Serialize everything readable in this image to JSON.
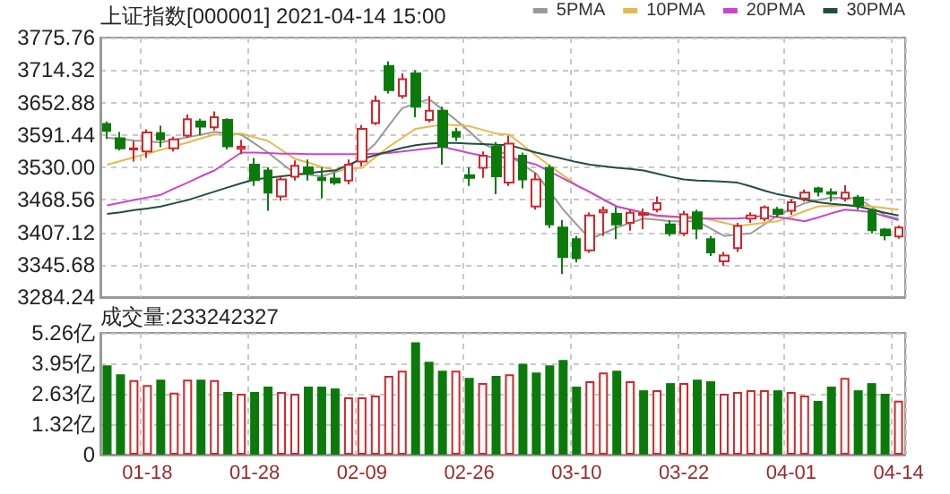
{
  "chart_data": [
    {
      "type": "candlestick",
      "title": "上证指数[000001] 2021-04-14 15:00",
      "categories": [
        null,
        null,
        null,
        null,
        null,
        null,
        null,
        null,
        null,
        null,
        null,
        null,
        null,
        null,
        null,
        null,
        null,
        null,
        null,
        null,
        null,
        null,
        null,
        null,
        null,
        null,
        null,
        null,
        null,
        null,
        null,
        null,
        null,
        null,
        null,
        null,
        null,
        null,
        null,
        null,
        null,
        null,
        null,
        null,
        null,
        null,
        null,
        null,
        null,
        null,
        null,
        null,
        null,
        null,
        null,
        null,
        null,
        null,
        null,
        null
      ],
      "ohlc": [
        [
          3612,
          3617,
          3584,
          3599
        ],
        [
          3585,
          3597,
          3562,
          3566
        ],
        [
          3564,
          3580,
          3541,
          3566
        ],
        [
          3560,
          3602,
          3548,
          3596
        ],
        [
          3595,
          3609,
          3568,
          3583
        ],
        [
          3566,
          3588,
          3560,
          3583
        ],
        [
          3590,
          3630,
          3586,
          3621
        ],
        [
          3617,
          3622,
          3591,
          3607
        ],
        [
          3606,
          3636,
          3600,
          3625
        ],
        [
          3620,
          3623,
          3564,
          3570
        ],
        [
          3565,
          3582,
          3555,
          3569
        ],
        [
          3535,
          3548,
          3495,
          3506
        ],
        [
          3524,
          3530,
          3448,
          3482
        ],
        [
          3475,
          3512,
          3467,
          3507
        ],
        [
          3512,
          3543,
          3505,
          3533
        ],
        [
          3530,
          3545,
          3505,
          3518
        ],
        [
          3510,
          3530,
          3471,
          3506
        ],
        [
          3509,
          3520,
          3497,
          3501
        ],
        [
          3505,
          3545,
          3498,
          3535
        ],
        [
          3541,
          3610,
          3532,
          3603
        ],
        [
          3614,
          3666,
          3610,
          3656
        ],
        [
          3722,
          3731,
          3670,
          3676
        ],
        [
          3665,
          3708,
          3660,
          3697
        ],
        [
          3708,
          3714,
          3625,
          3645
        ],
        [
          3620,
          3665,
          3615,
          3637
        ],
        [
          3637,
          3645,
          3535,
          3569
        ],
        [
          3597,
          3605,
          3580,
          3588
        ],
        [
          3515,
          3530,
          3495,
          3510
        ],
        [
          3529,
          3560,
          3510,
          3552
        ],
        [
          3569,
          3578,
          3479,
          3513
        ],
        [
          3501,
          3590,
          3495,
          3575
        ],
        [
          3552,
          3558,
          3490,
          3507
        ],
        [
          3456,
          3520,
          3450,
          3507
        ],
        [
          3529,
          3535,
          3415,
          3422
        ],
        [
          3416,
          3430,
          3328,
          3360
        ],
        [
          3394,
          3400,
          3350,
          3358
        ],
        [
          3373,
          3445,
          3368,
          3439
        ],
        [
          3445,
          3456,
          3400,
          3449
        ],
        [
          3442,
          3455,
          3394,
          3422
        ],
        [
          3425,
          3450,
          3410,
          3444
        ],
        [
          3440,
          3452,
          3413,
          3443
        ],
        [
          3450,
          3475,
          3445,
          3462
        ],
        [
          3422,
          3430,
          3400,
          3405
        ],
        [
          3405,
          3448,
          3400,
          3441
        ],
        [
          3445,
          3450,
          3394,
          3414
        ],
        [
          3394,
          3400,
          3362,
          3369
        ],
        [
          3352,
          3370,
          3343,
          3363
        ],
        [
          3377,
          3425,
          3370,
          3419
        ],
        [
          3433,
          3445,
          3425,
          3439
        ],
        [
          3433,
          3458,
          3428,
          3454
        ],
        [
          3450,
          3455,
          3435,
          3442
        ],
        [
          3448,
          3470,
          3440,
          3464
        ],
        [
          3471,
          3488,
          3465,
          3482
        ],
        [
          3490,
          3493,
          3475,
          3484
        ],
        [
          3483,
          3490,
          3465,
          3480
        ],
        [
          3471,
          3496,
          3465,
          3482
        ],
        [
          3473,
          3478,
          3450,
          3458
        ],
        [
          3448,
          3452,
          3405,
          3411
        ],
        [
          3412,
          3415,
          3392,
          3401
        ],
        [
          3399,
          3420,
          3395,
          3416
        ]
      ],
      "colors": [
        "#0b7a0b",
        "#0b7a0b",
        "#d0262a",
        "#d0262a",
        "#0b7a0b",
        "#d0262a",
        "#d0262a",
        "#0b7a0b",
        "#d0262a",
        "#0b7a0b",
        "#d0262a",
        "#0b7a0b",
        "#0b7a0b",
        "#d0262a",
        "#d0262a",
        "#0b7a0b",
        "#0b7a0b",
        "#0b7a0b",
        "#d0262a",
        "#d0262a",
        "#d0262a",
        "#0b7a0b",
        "#d0262a",
        "#0b7a0b",
        "#d0262a",
        "#0b7a0b",
        "#0b7a0b",
        "#0b7a0b",
        "#d0262a",
        "#0b7a0b",
        "#d0262a",
        "#0b7a0b",
        "#d0262a",
        "#0b7a0b",
        "#0b7a0b",
        "#0b7a0b",
        "#d0262a",
        "#d0262a",
        "#0b7a0b",
        "#d0262a",
        "#d0262a",
        "#d0262a",
        "#0b7a0b",
        "#d0262a",
        "#0b7a0b",
        "#0b7a0b",
        "#d0262a",
        "#d0262a",
        "#d0262a",
        "#d0262a",
        "#0b7a0b",
        "#d0262a",
        "#d0262a",
        "#0b7a0b",
        "#0b7a0b",
        "#d0262a",
        "#0b7a0b",
        "#0b7a0b",
        "#0b7a0b",
        "#d0262a"
      ],
      "series": [
        {
          "name": "5PMA",
          "type": "line",
          "color": "#9a9a9a",
          "values": [
            3586,
            3584,
            3581,
            3579,
            3577,
            3582,
            3587,
            3592,
            3597,
            3595,
            3592,
            3575,
            3558,
            3538,
            3518,
            3516,
            3513,
            3521,
            3529,
            3552,
            3575,
            3609,
            3642,
            3651,
            3659,
            3640,
            3620,
            3598,
            3575,
            3563,
            3552,
            3535,
            3518,
            3484,
            3450,
            3422,
            3394,
            3405,
            3416,
            3425,
            3433,
            3431,
            3428,
            3428,
            3428,
            3414,
            3400,
            3403,
            3405,
            3422,
            3439,
            3451,
            3462,
            3468,
            3473,
            3472,
            3471,
            3455,
            3439,
            3433
          ]
        },
        {
          "name": "10PMA",
          "type": "line",
          "color": "#e8b84a",
          "values": [
            3535,
            3542,
            3549,
            3556,
            3563,
            3570,
            3577,
            3585,
            3592,
            3593,
            3594,
            3587,
            3580,
            3563,
            3546,
            3539,
            3531,
            3524,
            3527,
            3529,
            3549,
            3569,
            3586,
            3603,
            3607,
            3611,
            3610,
            3608,
            3601,
            3594,
            3592,
            3572,
            3552,
            3533,
            3515,
            3496,
            3483,
            3469,
            3456,
            3450,
            3443,
            3437,
            3436,
            3436,
            3437,
            3431,
            3425,
            3419,
            3422,
            3425,
            3428,
            3437,
            3447,
            3456,
            3457,
            3458,
            3459,
            3456,
            3453,
            3450
          ]
        },
        {
          "name": "20PMA",
          "type": "line",
          "color": "#cc44cc",
          "values": [
            3458,
            3463,
            3468,
            3473,
            3478,
            3490,
            3501,
            3513,
            3524,
            3541,
            3558,
            3558,
            3557,
            3556,
            3556,
            3555,
            3555,
            3555,
            3555,
            3555,
            3556,
            3557,
            3560,
            3563,
            3566,
            3569,
            3563,
            3557,
            3552,
            3548,
            3550,
            3542,
            3535,
            3522,
            3509,
            3496,
            3483,
            3469,
            3456,
            3450,
            3444,
            3439,
            3437,
            3435,
            3433,
            3433,
            3433,
            3433,
            3435,
            3439,
            3436,
            3432,
            3428,
            3435,
            3443,
            3450,
            3448,
            3445,
            3437,
            3430
          ]
        },
        {
          "name": "30PMA",
          "type": "line",
          "color": "#1f4f3f",
          "values": [
            3442,
            3445,
            3449,
            3452,
            3456,
            3462,
            3468,
            3476,
            3484,
            3492,
            3500,
            3507,
            3510,
            3513,
            3516,
            3519,
            3522,
            3524,
            3535,
            3546,
            3553,
            3560,
            3567,
            3572,
            3575,
            3576,
            3576,
            3575,
            3574,
            3573,
            3572,
            3565,
            3558,
            3552,
            3546,
            3540,
            3535,
            3532,
            3529,
            3527,
            3524,
            3518,
            3512,
            3507,
            3505,
            3504,
            3503,
            3501,
            3494,
            3486,
            3479,
            3474,
            3469,
            3464,
            3461,
            3459,
            3456,
            3450,
            3444,
            3439
          ]
        }
      ],
      "ylim": [
        3284.24,
        3775.76
      ],
      "yticks": [
        3284.24,
        3345.68,
        3407.12,
        3468.56,
        {
          "value": 3530,
          "label": "3530.00"
        },
        3591.44,
        3652.88,
        3714.32,
        3775.76
      ],
      "grid": true,
      "legend": "top right",
      "tick_labels": "y"
    },
    {
      "type": "bar",
      "title": "成交量:233242327",
      "categories": [
        null,
        null,
        null,
        "01-18",
        null,
        null,
        null,
        null,
        null,
        null,
        null,
        "01-28",
        null,
        null,
        null,
        null,
        null,
        null,
        null,
        "02-09",
        null,
        null,
        null,
        null,
        null,
        null,
        null,
        "02-26",
        null,
        null,
        null,
        null,
        null,
        null,
        null,
        "03-10",
        null,
        null,
        null,
        null,
        null,
        null,
        null,
        "03-22",
        null,
        null,
        null,
        null,
        null,
        null,
        null,
        "04-01",
        null,
        null,
        null,
        null,
        null,
        null,
        null,
        "04-14"
      ],
      "values": [
        3.86,
        3.47,
        3.22,
        3.01,
        3.24,
        2.68,
        3.24,
        3.24,
        3.22,
        2.71,
        2.63,
        2.71,
        2.94,
        2.71,
        2.63,
        2.94,
        2.94,
        2.86,
        2.48,
        2.48,
        2.55,
        3.4,
        3.63,
        4.85,
        4.01,
        3.63,
        3.63,
        3.32,
        3.09,
        3.4,
        3.47,
        3.93,
        3.55,
        3.86,
        4.09,
        2.94,
        3.17,
        3.55,
        3.63,
        3.17,
        2.78,
        2.78,
        3.09,
        3.09,
        3.24,
        3.17,
        2.63,
        2.71,
        2.78,
        2.78,
        2.78,
        2.71,
        2.55,
        2.32,
        2.94,
        3.32,
        2.78,
        3.09,
        2.63,
        2.33
      ],
      "colors": [
        "#0b7a0b",
        "#0b7a0b",
        "#d0262a",
        "#d0262a",
        "#0b7a0b",
        "#d0262a",
        "#d0262a",
        "#0b7a0b",
        "#d0262a",
        "#0b7a0b",
        "#d0262a",
        "#0b7a0b",
        "#0b7a0b",
        "#d0262a",
        "#d0262a",
        "#0b7a0b",
        "#0b7a0b",
        "#0b7a0b",
        "#d0262a",
        "#d0262a",
        "#d0262a",
        "#d0262a",
        "#d0262a",
        "#0b7a0b",
        "#0b7a0b",
        "#0b7a0b",
        "#d0262a",
        "#0b7a0b",
        "#d0262a",
        "#0b7a0b",
        "#d0262a",
        "#0b7a0b",
        "#0b7a0b",
        "#0b7a0b",
        "#0b7a0b",
        "#0b7a0b",
        "#d0262a",
        "#d0262a",
        "#0b7a0b",
        "#d0262a",
        "#0b7a0b",
        "#d0262a",
        "#0b7a0b",
        "#d0262a",
        "#0b7a0b",
        "#0b7a0b",
        "#d0262a",
        "#d0262a",
        "#d0262a",
        "#d0262a",
        "#0b7a0b",
        "#d0262a",
        "#d0262a",
        "#0b7a0b",
        "#0b7a0b",
        "#d0262a",
        "#0b7a0b",
        "#0b7a0b",
        "#0b7a0b",
        "#d0262a"
      ],
      "ylim": [
        0,
        5.26
      ],
      "yticks": [
        0,
        {
          "value": 1.32,
          "label": "1.32亿"
        },
        {
          "value": 2.63,
          "label": "2.63亿"
        },
        {
          "value": 3.95,
          "label": "3.95亿"
        },
        {
          "value": 5.26,
          "label": "5.26亿"
        }
      ],
      "grid": true
    }
  ]
}
